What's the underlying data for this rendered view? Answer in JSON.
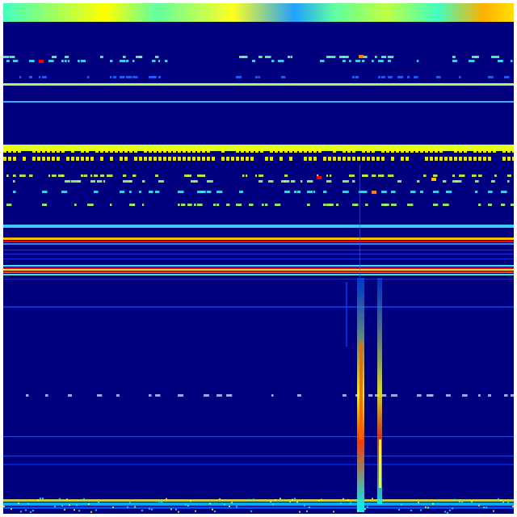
{
  "figure": {
    "type": "spectrogram-heatmap",
    "colormap": "jet",
    "background_color": "#00007f",
    "border_color": "#ffffff",
    "axes_visible": false,
    "colorbar_visible": false,
    "palette": {
      "low": "#00007f",
      "blue": "#0000ff",
      "cyan": "#00ffff",
      "yellow": "#ffff00",
      "red": "#ff0000",
      "high": "#7f0000"
    }
  }
}
